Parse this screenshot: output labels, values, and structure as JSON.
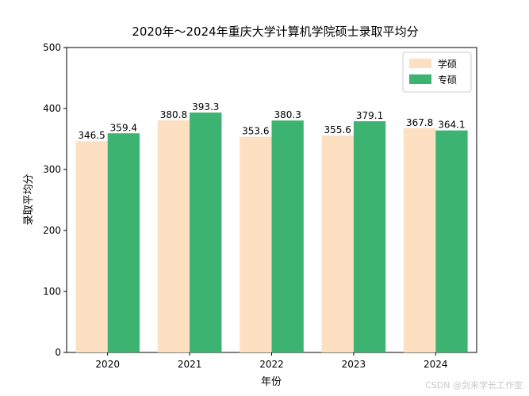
{
  "chart_data": {
    "type": "bar",
    "title": "2020年～2024年重庆大学计算机学院硕士录取平均分",
    "xlabel": "年份",
    "ylabel": "录取平均分",
    "categories": [
      "2020",
      "2021",
      "2022",
      "2023",
      "2024"
    ],
    "ylim": [
      0,
      500
    ],
    "yticks": [
      "0",
      "100",
      "200",
      "300",
      "400",
      "500"
    ],
    "grid": false,
    "legend_position": "top-right",
    "series": [
      {
        "name": "学硕",
        "color": "#fde0c2",
        "values": [
          346.5,
          380.8,
          353.6,
          355.6,
          367.8
        ],
        "labels": [
          "346.5",
          "380.8",
          "353.6",
          "355.6",
          "367.8"
        ]
      },
      {
        "name": "专硕",
        "color": "#3cb371",
        "values": [
          359.4,
          393.3,
          380.3,
          379.1,
          364.1
        ],
        "labels": [
          "359.4",
          "393.3",
          "380.3",
          "379.1",
          "364.1"
        ]
      }
    ]
  },
  "watermark": "CSDN @剑来学长工作室"
}
